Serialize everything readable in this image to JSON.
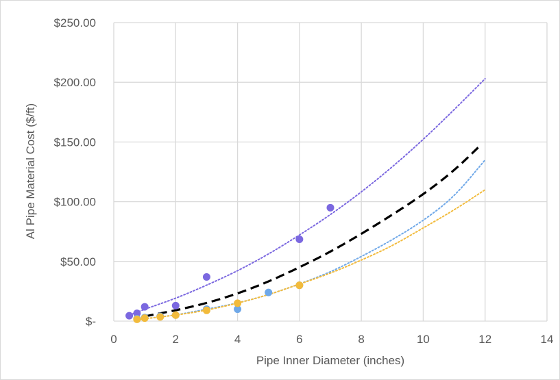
{
  "chart_data": {
    "type": "scatter",
    "title": "",
    "xlabel": "Pipe Inner Diameter (inches)",
    "ylabel": "Al Pipe Material Cost ($/ft)",
    "xlim": [
      0,
      14
    ],
    "ylim": [
      0,
      250
    ],
    "x_ticks": [
      0,
      2,
      4,
      6,
      8,
      10,
      12,
      14
    ],
    "x_tick_labels": [
      "0",
      "2",
      "4",
      "6",
      "8",
      "10",
      "12",
      "14"
    ],
    "y_ticks": [
      0,
      50,
      100,
      150,
      200,
      250
    ],
    "y_tick_labels": [
      "$-",
      "$50.00",
      "$100.00",
      "$150.00",
      "$200.00",
      "$250.00"
    ],
    "grid": true,
    "legend": "none",
    "series": [
      {
        "color": "#7b68e0",
        "marker": "circle",
        "points": [
          [
            0.5,
            4.5
          ],
          [
            0.75,
            6.5
          ],
          [
            1.0,
            12
          ],
          [
            2.0,
            13
          ],
          [
            3.0,
            37
          ],
          [
            6.0,
            68.5
          ],
          [
            7.0,
            95
          ]
        ]
      },
      {
        "color": "#6fa8e8",
        "marker": "circle",
        "points": [
          [
            0.75,
            2
          ],
          [
            1.0,
            3
          ],
          [
            1.5,
            4
          ],
          [
            2.0,
            5
          ],
          [
            3.0,
            10
          ],
          [
            4.0,
            10
          ],
          [
            5.0,
            24
          ],
          [
            6.0,
            30
          ]
        ]
      },
      {
        "color": "#f2bb3c",
        "marker": "circle",
        "points": [
          [
            0.75,
            1.5
          ],
          [
            1.0,
            2.5
          ],
          [
            1.5,
            3.5
          ],
          [
            2.0,
            5
          ],
          [
            3.0,
            9
          ],
          [
            4.0,
            15
          ],
          [
            6.0,
            30
          ]
        ]
      }
    ],
    "trendlines": [
      {
        "color": "#7b68e0",
        "style": "dotted",
        "points": [
          [
            0.5,
            5
          ],
          [
            1,
            10
          ],
          [
            2,
            19
          ],
          [
            3,
            30
          ],
          [
            4,
            42
          ],
          [
            5,
            56
          ],
          [
            6,
            72
          ],
          [
            7,
            89
          ],
          [
            8,
            108
          ],
          [
            9,
            129
          ],
          [
            10,
            152
          ],
          [
            11,
            177
          ],
          [
            12,
            203
          ]
        ]
      },
      {
        "color": "#6fa8e8",
        "style": "dotted",
        "points": [
          [
            0.75,
            1
          ],
          [
            1,
            2
          ],
          [
            2,
            5
          ],
          [
            3,
            10
          ],
          [
            4,
            15
          ],
          [
            5,
            22
          ],
          [
            6,
            31
          ],
          [
            7,
            41
          ],
          [
            8,
            54
          ],
          [
            9,
            68
          ],
          [
            10,
            84
          ],
          [
            11,
            104
          ],
          [
            12,
            135
          ]
        ]
      },
      {
        "color": "#f2bb3c",
        "style": "dotted",
        "points": [
          [
            0.75,
            1
          ],
          [
            1,
            2
          ],
          [
            2,
            5
          ],
          [
            3,
            9
          ],
          [
            4,
            15
          ],
          [
            5,
            22
          ],
          [
            6,
            31
          ],
          [
            7,
            40
          ],
          [
            8,
            51
          ],
          [
            9,
            63
          ],
          [
            10,
            78
          ],
          [
            11,
            93
          ],
          [
            12,
            110
          ]
        ]
      },
      {
        "color": "#000000",
        "style": "dashed",
        "points": [
          [
            1,
            4
          ],
          [
            2,
            9
          ],
          [
            3,
            15
          ],
          [
            4,
            23
          ],
          [
            5,
            33
          ],
          [
            6,
            45
          ],
          [
            7,
            58
          ],
          [
            8,
            73
          ],
          [
            9,
            89
          ],
          [
            10,
            106
          ],
          [
            11,
            126
          ],
          [
            11.8,
            146
          ]
        ]
      }
    ]
  }
}
